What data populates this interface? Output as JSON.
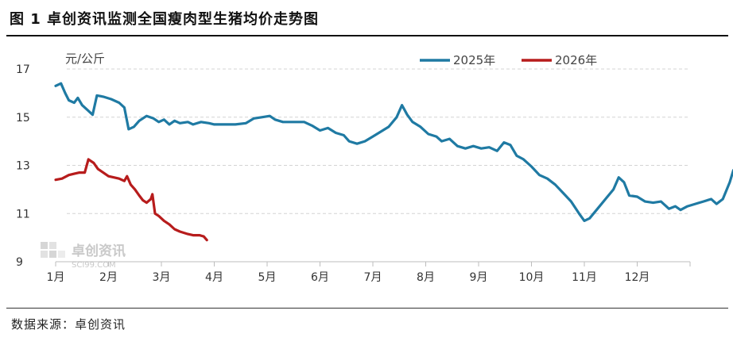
{
  "figure": {
    "title": "图 1  卓创资讯监测全国瘦肉型生猪均价走势图",
    "source": "数据来源：卓创资讯",
    "watermark": {
      "name": "卓创资讯",
      "url": "SCI99.COM"
    }
  },
  "chart_data": {
    "type": "line",
    "unit": "元/公斤",
    "ylim": [
      9,
      17
    ],
    "yticks": [
      9,
      11,
      13,
      15,
      17
    ],
    "x_categories": [
      "1月",
      "2月",
      "3月",
      "4月",
      "5月",
      "6月",
      "7月",
      "8月",
      "9月",
      "10月",
      "11月",
      "12月"
    ],
    "grid": "horizontal dashed",
    "legend_position": "top-right",
    "series": [
      {
        "name": "2025年",
        "color": "#1f7aa3",
        "points": [
          [
            0.0,
            16.3
          ],
          [
            0.1,
            16.4
          ],
          [
            0.18,
            16.0
          ],
          [
            0.25,
            15.7
          ],
          [
            0.35,
            15.6
          ],
          [
            0.42,
            15.8
          ],
          [
            0.5,
            15.5
          ],
          [
            0.6,
            15.3
          ],
          [
            0.7,
            15.1
          ],
          [
            0.78,
            15.9
          ],
          [
            0.9,
            15.85
          ],
          [
            1.05,
            15.75
          ],
          [
            1.2,
            15.6
          ],
          [
            1.3,
            15.4
          ],
          [
            1.38,
            14.5
          ],
          [
            1.48,
            14.6
          ],
          [
            1.58,
            14.85
          ],
          [
            1.72,
            15.05
          ],
          [
            1.85,
            14.95
          ],
          [
            1.95,
            14.8
          ],
          [
            2.05,
            14.9
          ],
          [
            2.15,
            14.7
          ],
          [
            2.25,
            14.85
          ],
          [
            2.35,
            14.75
          ],
          [
            2.5,
            14.8
          ],
          [
            2.6,
            14.7
          ],
          [
            2.75,
            14.8
          ],
          [
            2.9,
            14.75
          ],
          [
            3.0,
            14.7
          ],
          [
            3.2,
            14.7
          ],
          [
            3.4,
            14.7
          ],
          [
            3.6,
            14.75
          ],
          [
            3.75,
            14.95
          ],
          [
            3.9,
            15.0
          ],
          [
            4.05,
            15.05
          ],
          [
            4.15,
            14.9
          ],
          [
            4.3,
            14.8
          ],
          [
            4.5,
            14.8
          ],
          [
            4.7,
            14.8
          ],
          [
            4.85,
            14.65
          ],
          [
            5.0,
            14.45
          ],
          [
            5.15,
            14.55
          ],
          [
            5.3,
            14.35
          ],
          [
            5.45,
            14.25
          ],
          [
            5.55,
            14.0
          ],
          [
            5.7,
            13.9
          ],
          [
            5.85,
            14.0
          ],
          [
            6.0,
            14.2
          ],
          [
            6.15,
            14.4
          ],
          [
            6.3,
            14.6
          ],
          [
            6.45,
            15.0
          ],
          [
            6.55,
            15.5
          ],
          [
            6.65,
            15.1
          ],
          [
            6.75,
            14.8
          ],
          [
            6.9,
            14.6
          ],
          [
            7.05,
            14.3
          ],
          [
            7.2,
            14.2
          ],
          [
            7.3,
            14.0
          ],
          [
            7.45,
            14.1
          ],
          [
            7.6,
            13.8
          ],
          [
            7.75,
            13.7
          ],
          [
            7.9,
            13.8
          ],
          [
            8.05,
            13.7
          ],
          [
            8.2,
            13.75
          ],
          [
            8.35,
            13.6
          ],
          [
            8.48,
            13.95
          ],
          [
            8.6,
            13.85
          ],
          [
            8.72,
            13.4
          ],
          [
            8.85,
            13.25
          ],
          [
            9.0,
            12.95
          ],
          [
            9.15,
            12.6
          ],
          [
            9.3,
            12.45
          ],
          [
            9.45,
            12.2
          ],
          [
            9.6,
            11.85
          ],
          [
            9.75,
            11.5
          ],
          [
            9.9,
            11.0
          ],
          [
            10.0,
            10.7
          ],
          [
            10.1,
            10.8
          ],
          [
            10.25,
            11.2
          ],
          [
            10.4,
            11.6
          ],
          [
            10.55,
            12.0
          ],
          [
            10.65,
            12.5
          ],
          [
            10.75,
            12.3
          ],
          [
            10.85,
            11.75
          ],
          [
            11.0,
            11.7
          ],
          [
            11.15,
            11.5
          ],
          [
            11.3,
            11.45
          ],
          [
            11.45,
            11.5
          ],
          [
            11.6,
            11.2
          ],
          [
            11.72,
            11.3
          ],
          [
            11.82,
            11.15
          ],
          [
            11.95,
            11.3
          ],
          [
            12.1,
            11.4
          ],
          [
            12.25,
            11.5
          ],
          [
            12.4,
            11.6
          ],
          [
            12.5,
            11.4
          ],
          [
            12.62,
            11.6
          ],
          [
            12.75,
            12.3
          ],
          [
            12.82,
            12.8
          ]
        ]
      },
      {
        "name": "2026年",
        "color": "#b71c1c",
        "points": [
          [
            0.0,
            12.4
          ],
          [
            0.12,
            12.45
          ],
          [
            0.25,
            12.6
          ],
          [
            0.35,
            12.65
          ],
          [
            0.45,
            12.7
          ],
          [
            0.55,
            12.7
          ],
          [
            0.62,
            13.25
          ],
          [
            0.72,
            13.1
          ],
          [
            0.8,
            12.85
          ],
          [
            0.9,
            12.7
          ],
          [
            1.0,
            12.55
          ],
          [
            1.1,
            12.5
          ],
          [
            1.2,
            12.45
          ],
          [
            1.3,
            12.35
          ],
          [
            1.35,
            12.55
          ],
          [
            1.42,
            12.2
          ],
          [
            1.5,
            12.0
          ],
          [
            1.58,
            11.75
          ],
          [
            1.65,
            11.55
          ],
          [
            1.72,
            11.45
          ],
          [
            1.8,
            11.6
          ],
          [
            1.83,
            11.8
          ],
          [
            1.88,
            11.0
          ],
          [
            1.95,
            10.9
          ],
          [
            2.05,
            10.7
          ],
          [
            2.15,
            10.55
          ],
          [
            2.25,
            10.35
          ],
          [
            2.35,
            10.25
          ],
          [
            2.5,
            10.15
          ],
          [
            2.6,
            10.1
          ],
          [
            2.72,
            10.1
          ],
          [
            2.8,
            10.05
          ],
          [
            2.86,
            9.9
          ]
        ]
      }
    ]
  }
}
